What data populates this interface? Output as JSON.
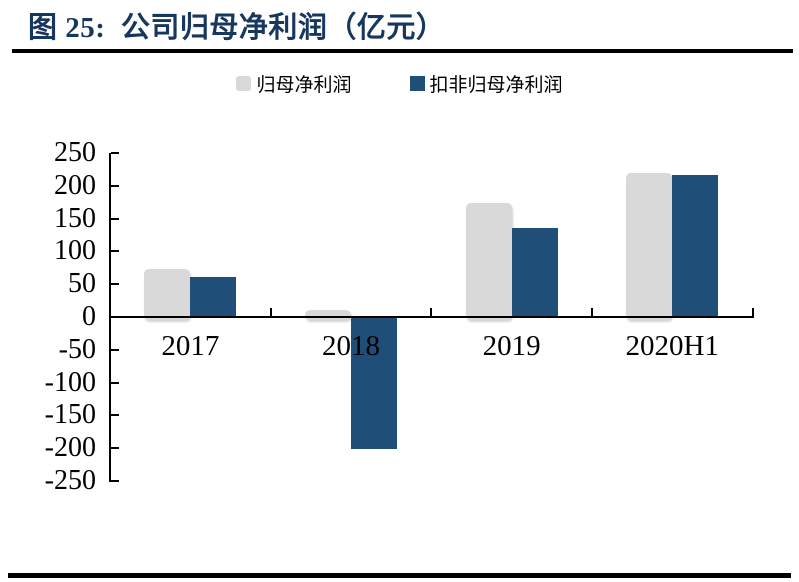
{
  "figure": {
    "title": "图 25:  公司归母净利润（亿元）"
  },
  "colors": {
    "title": "#17375E",
    "axis": "#000000",
    "bar_gray": "#D9D9D9",
    "bar_blue": "#1F4E79",
    "rule": "#000000"
  },
  "chart_data": {
    "type": "bar",
    "title": "公司归母净利润（亿元）",
    "figure_label": "图 25:",
    "categories": [
      "2017",
      "2018",
      "2019",
      "2020H1"
    ],
    "series": [
      {
        "name": "归母净利润",
        "color": "#D9D9D9",
        "values": [
          73,
          10,
          174,
          220
        ]
      },
      {
        "name": "扣非归母净利润",
        "color": "#1F4E79",
        "values": [
          61,
          -200,
          136,
          216
        ]
      }
    ],
    "xlabel": "",
    "ylabel": "",
    "ylim": [
      -250,
      250
    ],
    "ytick_step": 50,
    "yticks": [
      250,
      200,
      150,
      100,
      50,
      0,
      -50,
      -100,
      -150,
      -200,
      -250
    ],
    "grid": false,
    "legend_position": "top"
  }
}
